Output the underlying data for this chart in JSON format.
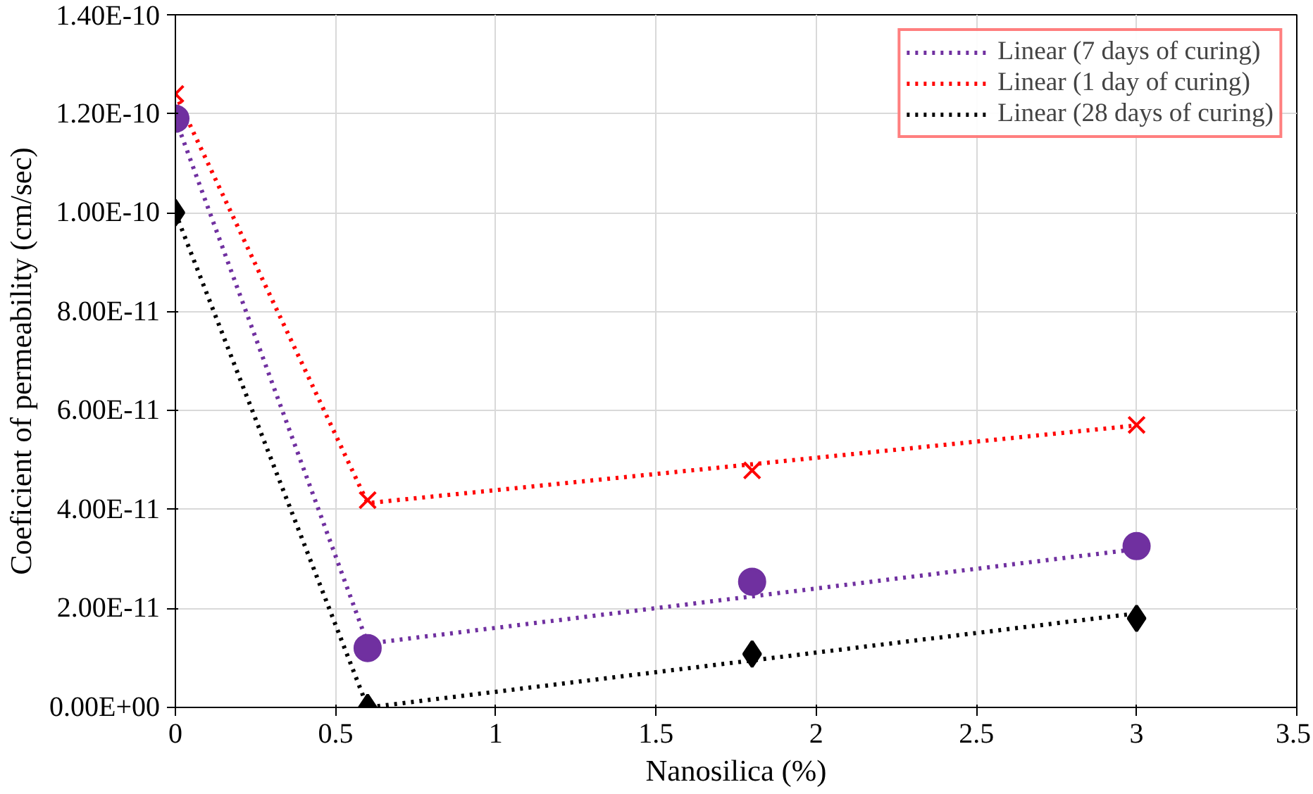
{
  "chart_data": {
    "type": "scatter",
    "xlabel": "Nanosilica (%)",
    "ylabel": "Coeficient of permeability (cm/sec)",
    "xlim": [
      0,
      3.5
    ],
    "xticks": [
      0,
      0.5,
      1,
      1.5,
      2,
      2.5,
      3,
      3.5
    ],
    "ylim": [
      0,
      1.4e-10
    ],
    "yticks": [
      {
        "value": 0,
        "label": "0.00E+00"
      },
      {
        "value": 2e-11,
        "label": "2.00E-11"
      },
      {
        "value": 4e-11,
        "label": "4.00E-11"
      },
      {
        "value": 6e-11,
        "label": "6.00E-11"
      },
      {
        "value": 8e-11,
        "label": "8.00E-11"
      },
      {
        "value": 1e-10,
        "label": "1.00E-10"
      },
      {
        "value": 1.2e-10,
        "label": "1.20E-10"
      },
      {
        "value": 1.4e-10,
        "label": "1.40E-10"
      }
    ],
    "grid": true,
    "legend": "top right",
    "series": [
      {
        "type": "line",
        "name": "Linear (7 days of curing)",
        "color": "#7030a0",
        "line_style": "dotted",
        "marker": "none",
        "x": [
          0,
          0.6,
          3
        ],
        "values": [
          1.19e-10,
          1.29e-11,
          3.2e-11
        ]
      },
      {
        "type": "line",
        "name": "Linear (1 day of curing)",
        "color": "#ff0000",
        "line_style": "dotted",
        "marker": "none",
        "x": [
          0,
          0.6,
          3
        ],
        "values": [
          1.24e-10,
          4.13e-11,
          5.7e-11
        ]
      },
      {
        "type": "line",
        "name": "Linear (28 days of curing)",
        "color": "#000000",
        "line_style": "dotted",
        "marker": "none",
        "x": [
          0,
          0.6,
          3
        ],
        "values": [
          1e-10,
          0,
          1.9e-11
        ]
      },
      {
        "color": "#7030a0",
        "marker": "circle",
        "x": [
          0,
          0.6,
          1.8,
          3
        ],
        "values": [
          1.19e-10,
          1.2e-11,
          2.54e-11,
          3.26e-11
        ]
      },
      {
        "color": "#ff0000",
        "marker": "cross",
        "x": [
          0,
          0.6,
          1.8,
          3
        ],
        "values": [
          1.24e-10,
          4.19e-11,
          4.79e-11,
          5.71e-11
        ]
      },
      {
        "color": "#000000",
        "marker": "diamond",
        "x": [
          0,
          0.6,
          1.8,
          3
        ],
        "values": [
          1e-10,
          0,
          1.08e-11,
          1.8e-11
        ]
      }
    ]
  }
}
